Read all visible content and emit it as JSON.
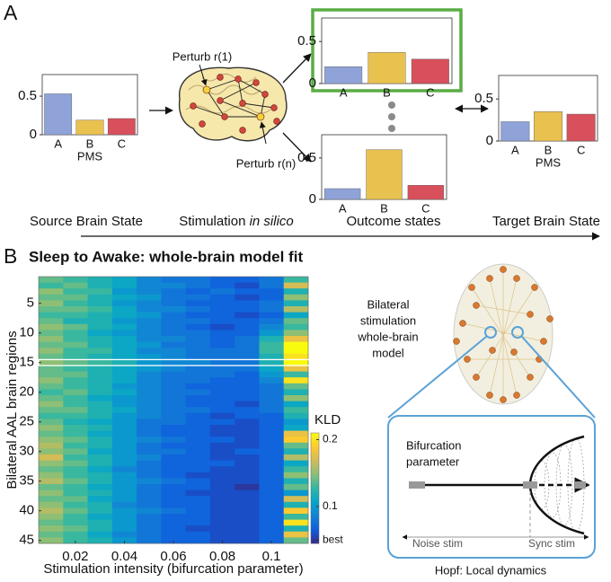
{
  "figure": {
    "panel_a": "A",
    "panel_b": "B",
    "perturb_first": "Perturb r(1)",
    "perturb_last": "Perturb r(n)",
    "source_label": "Source Brain State",
    "stimulation_label": "Stimulation",
    "stimulation_label_italic": "in silico",
    "outcome_label": "Outcome states",
    "target_label": "Target Brain State",
    "brain_model_label": [
      "Bilateral",
      "stimulation",
      "whole-brain",
      "model"
    ],
    "bifurcation_label": [
      "Bifurcation",
      "parameter"
    ],
    "noise_label": "Noise stim",
    "sync_label": "Sync stim",
    "hopf_label": "Hopf: Local dynamics"
  },
  "chart_data": [
    {
      "type": "bar",
      "categories": [
        "A",
        "B",
        "C"
      ],
      "values": [
        0.53,
        0.19,
        0.21
      ],
      "colors": [
        "#8fa3d9",
        "#e9c14f",
        "#d8505c"
      ],
      "ylim": [
        0,
        0.78
      ],
      "yticks": [
        0,
        0.5
      ],
      "xlabel": "PMS"
    },
    {
      "type": "bar",
      "categories": [
        "A",
        "B",
        "C"
      ],
      "values": [
        0.2,
        0.37,
        0.29
      ],
      "colors": [
        "#8fa3d9",
        "#e9c14f",
        "#d8505c"
      ],
      "ylim": [
        0,
        0.78
      ],
      "yticks": [
        0,
        0.5
      ],
      "frame_color": "#5aac44"
    },
    {
      "type": "bar",
      "categories": [
        "A",
        "B",
        "C"
      ],
      "values": [
        0.13,
        0.6,
        0.17
      ],
      "colors": [
        "#8fa3d9",
        "#e9c14f",
        "#d8505c"
      ],
      "ylim": [
        0,
        0.78
      ],
      "yticks": [
        0,
        0.5
      ]
    },
    {
      "type": "bar",
      "categories": [
        "A",
        "B",
        "C"
      ],
      "values": [
        0.23,
        0.35,
        0.32
      ],
      "colors": [
        "#8fa3d9",
        "#e9c14f",
        "#d8505c"
      ],
      "ylim": [
        0,
        0.78
      ],
      "yticks": [
        0,
        0.5
      ],
      "xlabel": "PMS"
    },
    {
      "type": "heatmap",
      "title": "Sleep to Awake: whole-brain model fit",
      "xlabel": "Stimulation intensity (bifurcation parameter)",
      "ylabel": "Bilateral AAL brain regions",
      "x": [
        0.01,
        0.02,
        0.03,
        0.04,
        0.05,
        0.06,
        0.07,
        0.08,
        0.09,
        0.1,
        0.11
      ],
      "y": [
        1,
        2,
        3,
        4,
        5,
        6,
        7,
        8,
        9,
        10,
        11,
        12,
        13,
        14,
        15,
        16,
        17,
        18,
        19,
        20,
        21,
        22,
        23,
        24,
        25,
        26,
        27,
        28,
        29,
        30,
        31,
        32,
        33,
        34,
        35,
        36,
        37,
        38,
        39,
        40,
        41,
        42,
        43,
        44,
        45
      ],
      "xlim": [
        0.005,
        0.115
      ],
      "xticks": [
        0.02,
        0.04,
        0.06,
        0.08,
        0.1
      ],
      "ylim": [
        0.5,
        45.5
      ],
      "yticks": [
        5,
        10,
        15,
        20,
        25,
        30,
        35,
        40,
        45
      ],
      "colormap": "parula",
      "highlight_row": 15,
      "colorbar": {
        "label": "KLD",
        "lim": [
          0.045,
          0.21
        ],
        "ticks": [
          0.2,
          0.1,
          {
            "value": 0.05,
            "label": "best"
          }
        ]
      },
      "z": [
        [
          0.14,
          0.13,
          0.12,
          0.11,
          0.09,
          0.08,
          0.08,
          0.07,
          0.07,
          0.08,
          0.13
        ],
        [
          0.13,
          0.14,
          0.12,
          0.11,
          0.09,
          0.09,
          0.08,
          0.07,
          0.06,
          0.08,
          0.17
        ],
        [
          0.15,
          0.13,
          0.13,
          0.1,
          0.09,
          0.08,
          0.07,
          0.08,
          0.07,
          0.07,
          0.12
        ],
        [
          0.14,
          0.14,
          0.12,
          0.11,
          0.1,
          0.08,
          0.08,
          0.07,
          0.06,
          0.07,
          0.15
        ],
        [
          0.15,
          0.13,
          0.12,
          0.1,
          0.09,
          0.08,
          0.07,
          0.07,
          0.07,
          0.08,
          0.12
        ],
        [
          0.14,
          0.14,
          0.13,
          0.11,
          0.09,
          0.09,
          0.08,
          0.07,
          0.07,
          0.08,
          0.16
        ],
        [
          0.13,
          0.13,
          0.12,
          0.11,
          0.1,
          0.08,
          0.07,
          0.07,
          0.06,
          0.07,
          0.11
        ],
        [
          0.14,
          0.12,
          0.12,
          0.1,
          0.09,
          0.08,
          0.08,
          0.07,
          0.07,
          0.08,
          0.14
        ],
        [
          0.15,
          0.14,
          0.12,
          0.11,
          0.09,
          0.08,
          0.07,
          0.06,
          0.07,
          0.09,
          0.13
        ],
        [
          0.14,
          0.13,
          0.11,
          0.1,
          0.09,
          0.08,
          0.08,
          0.07,
          0.07,
          0.1,
          0.15
        ],
        [
          0.15,
          0.13,
          0.12,
          0.11,
          0.09,
          0.09,
          0.08,
          0.07,
          0.08,
          0.12,
          0.18
        ],
        [
          0.14,
          0.14,
          0.12,
          0.11,
          0.1,
          0.08,
          0.08,
          0.07,
          0.08,
          0.13,
          0.21
        ],
        [
          0.15,
          0.13,
          0.13,
          0.11,
          0.09,
          0.09,
          0.08,
          0.08,
          0.08,
          0.13,
          0.21
        ],
        [
          0.14,
          0.13,
          0.12,
          0.11,
          0.1,
          0.09,
          0.08,
          0.08,
          0.08,
          0.12,
          0.2
        ],
        [
          0.15,
          0.14,
          0.13,
          0.12,
          0.1,
          0.09,
          0.09,
          0.08,
          0.08,
          0.12,
          0.21
        ],
        [
          0.14,
          0.13,
          0.12,
          0.11,
          0.1,
          0.09,
          0.08,
          0.08,
          0.08,
          0.11,
          0.18
        ],
        [
          0.14,
          0.14,
          0.12,
          0.11,
          0.09,
          0.08,
          0.08,
          0.08,
          0.07,
          0.1,
          0.13
        ],
        [
          0.15,
          0.13,
          0.12,
          0.11,
          0.09,
          0.08,
          0.08,
          0.07,
          0.07,
          0.09,
          0.2
        ],
        [
          0.14,
          0.13,
          0.12,
          0.1,
          0.09,
          0.08,
          0.07,
          0.07,
          0.07,
          0.08,
          0.14
        ],
        [
          0.13,
          0.14,
          0.12,
          0.11,
          0.09,
          0.08,
          0.08,
          0.07,
          0.07,
          0.08,
          0.12
        ],
        [
          0.14,
          0.13,
          0.11,
          0.1,
          0.09,
          0.08,
          0.07,
          0.07,
          0.07,
          0.08,
          0.15
        ],
        [
          0.15,
          0.13,
          0.12,
          0.1,
          0.09,
          0.08,
          0.07,
          0.07,
          0.06,
          0.08,
          0.11
        ],
        [
          0.14,
          0.14,
          0.12,
          0.11,
          0.09,
          0.08,
          0.08,
          0.07,
          0.07,
          0.08,
          0.13
        ],
        [
          0.13,
          0.13,
          0.12,
          0.1,
          0.09,
          0.08,
          0.07,
          0.06,
          0.07,
          0.07,
          0.12
        ],
        [
          0.14,
          0.12,
          0.11,
          0.1,
          0.08,
          0.08,
          0.07,
          0.07,
          0.06,
          0.07,
          0.1
        ],
        [
          0.15,
          0.13,
          0.12,
          0.1,
          0.08,
          0.07,
          0.07,
          0.06,
          0.06,
          0.07,
          0.11
        ],
        [
          0.14,
          0.13,
          0.11,
          0.1,
          0.08,
          0.07,
          0.07,
          0.06,
          0.06,
          0.07,
          0.18
        ],
        [
          0.15,
          0.14,
          0.12,
          0.1,
          0.09,
          0.08,
          0.07,
          0.07,
          0.06,
          0.07,
          0.19
        ],
        [
          0.16,
          0.13,
          0.12,
          0.1,
          0.08,
          0.07,
          0.07,
          0.06,
          0.06,
          0.07,
          0.14
        ],
        [
          0.15,
          0.14,
          0.11,
          0.1,
          0.08,
          0.08,
          0.07,
          0.06,
          0.07,
          0.07,
          0.12
        ],
        [
          0.17,
          0.13,
          0.12,
          0.1,
          0.09,
          0.07,
          0.07,
          0.06,
          0.06,
          0.07,
          0.16
        ],
        [
          0.15,
          0.14,
          0.12,
          0.1,
          0.08,
          0.07,
          0.07,
          0.07,
          0.06,
          0.07,
          0.11
        ],
        [
          0.14,
          0.13,
          0.11,
          0.09,
          0.08,
          0.07,
          0.07,
          0.06,
          0.06,
          0.07,
          0.13
        ],
        [
          0.15,
          0.13,
          0.12,
          0.1,
          0.08,
          0.07,
          0.06,
          0.06,
          0.06,
          0.07,
          0.15
        ],
        [
          0.16,
          0.14,
          0.12,
          0.1,
          0.09,
          0.08,
          0.07,
          0.06,
          0.06,
          0.07,
          0.12
        ],
        [
          0.14,
          0.13,
          0.11,
          0.1,
          0.08,
          0.07,
          0.07,
          0.06,
          0.05,
          0.07,
          0.14
        ],
        [
          0.15,
          0.13,
          0.12,
          0.1,
          0.08,
          0.07,
          0.06,
          0.06,
          0.06,
          0.07,
          0.1
        ],
        [
          0.14,
          0.14,
          0.11,
          0.1,
          0.08,
          0.07,
          0.07,
          0.06,
          0.06,
          0.07,
          0.17
        ],
        [
          0.15,
          0.13,
          0.12,
          0.09,
          0.08,
          0.07,
          0.07,
          0.06,
          0.06,
          0.07,
          0.12
        ],
        [
          0.16,
          0.14,
          0.12,
          0.1,
          0.09,
          0.08,
          0.07,
          0.06,
          0.06,
          0.07,
          0.19
        ],
        [
          0.15,
          0.13,
          0.11,
          0.1,
          0.08,
          0.07,
          0.07,
          0.06,
          0.06,
          0.07,
          0.13
        ],
        [
          0.14,
          0.13,
          0.12,
          0.1,
          0.08,
          0.07,
          0.07,
          0.06,
          0.06,
          0.07,
          0.2
        ],
        [
          0.15,
          0.14,
          0.12,
          0.1,
          0.08,
          0.07,
          0.06,
          0.06,
          0.06,
          0.07,
          0.12
        ],
        [
          0.14,
          0.13,
          0.11,
          0.09,
          0.08,
          0.07,
          0.07,
          0.06,
          0.06,
          0.07,
          0.18
        ],
        [
          0.15,
          0.13,
          0.12,
          0.1,
          0.08,
          0.07,
          0.07,
          0.06,
          0.06,
          0.07,
          0.14
        ]
      ]
    }
  ]
}
